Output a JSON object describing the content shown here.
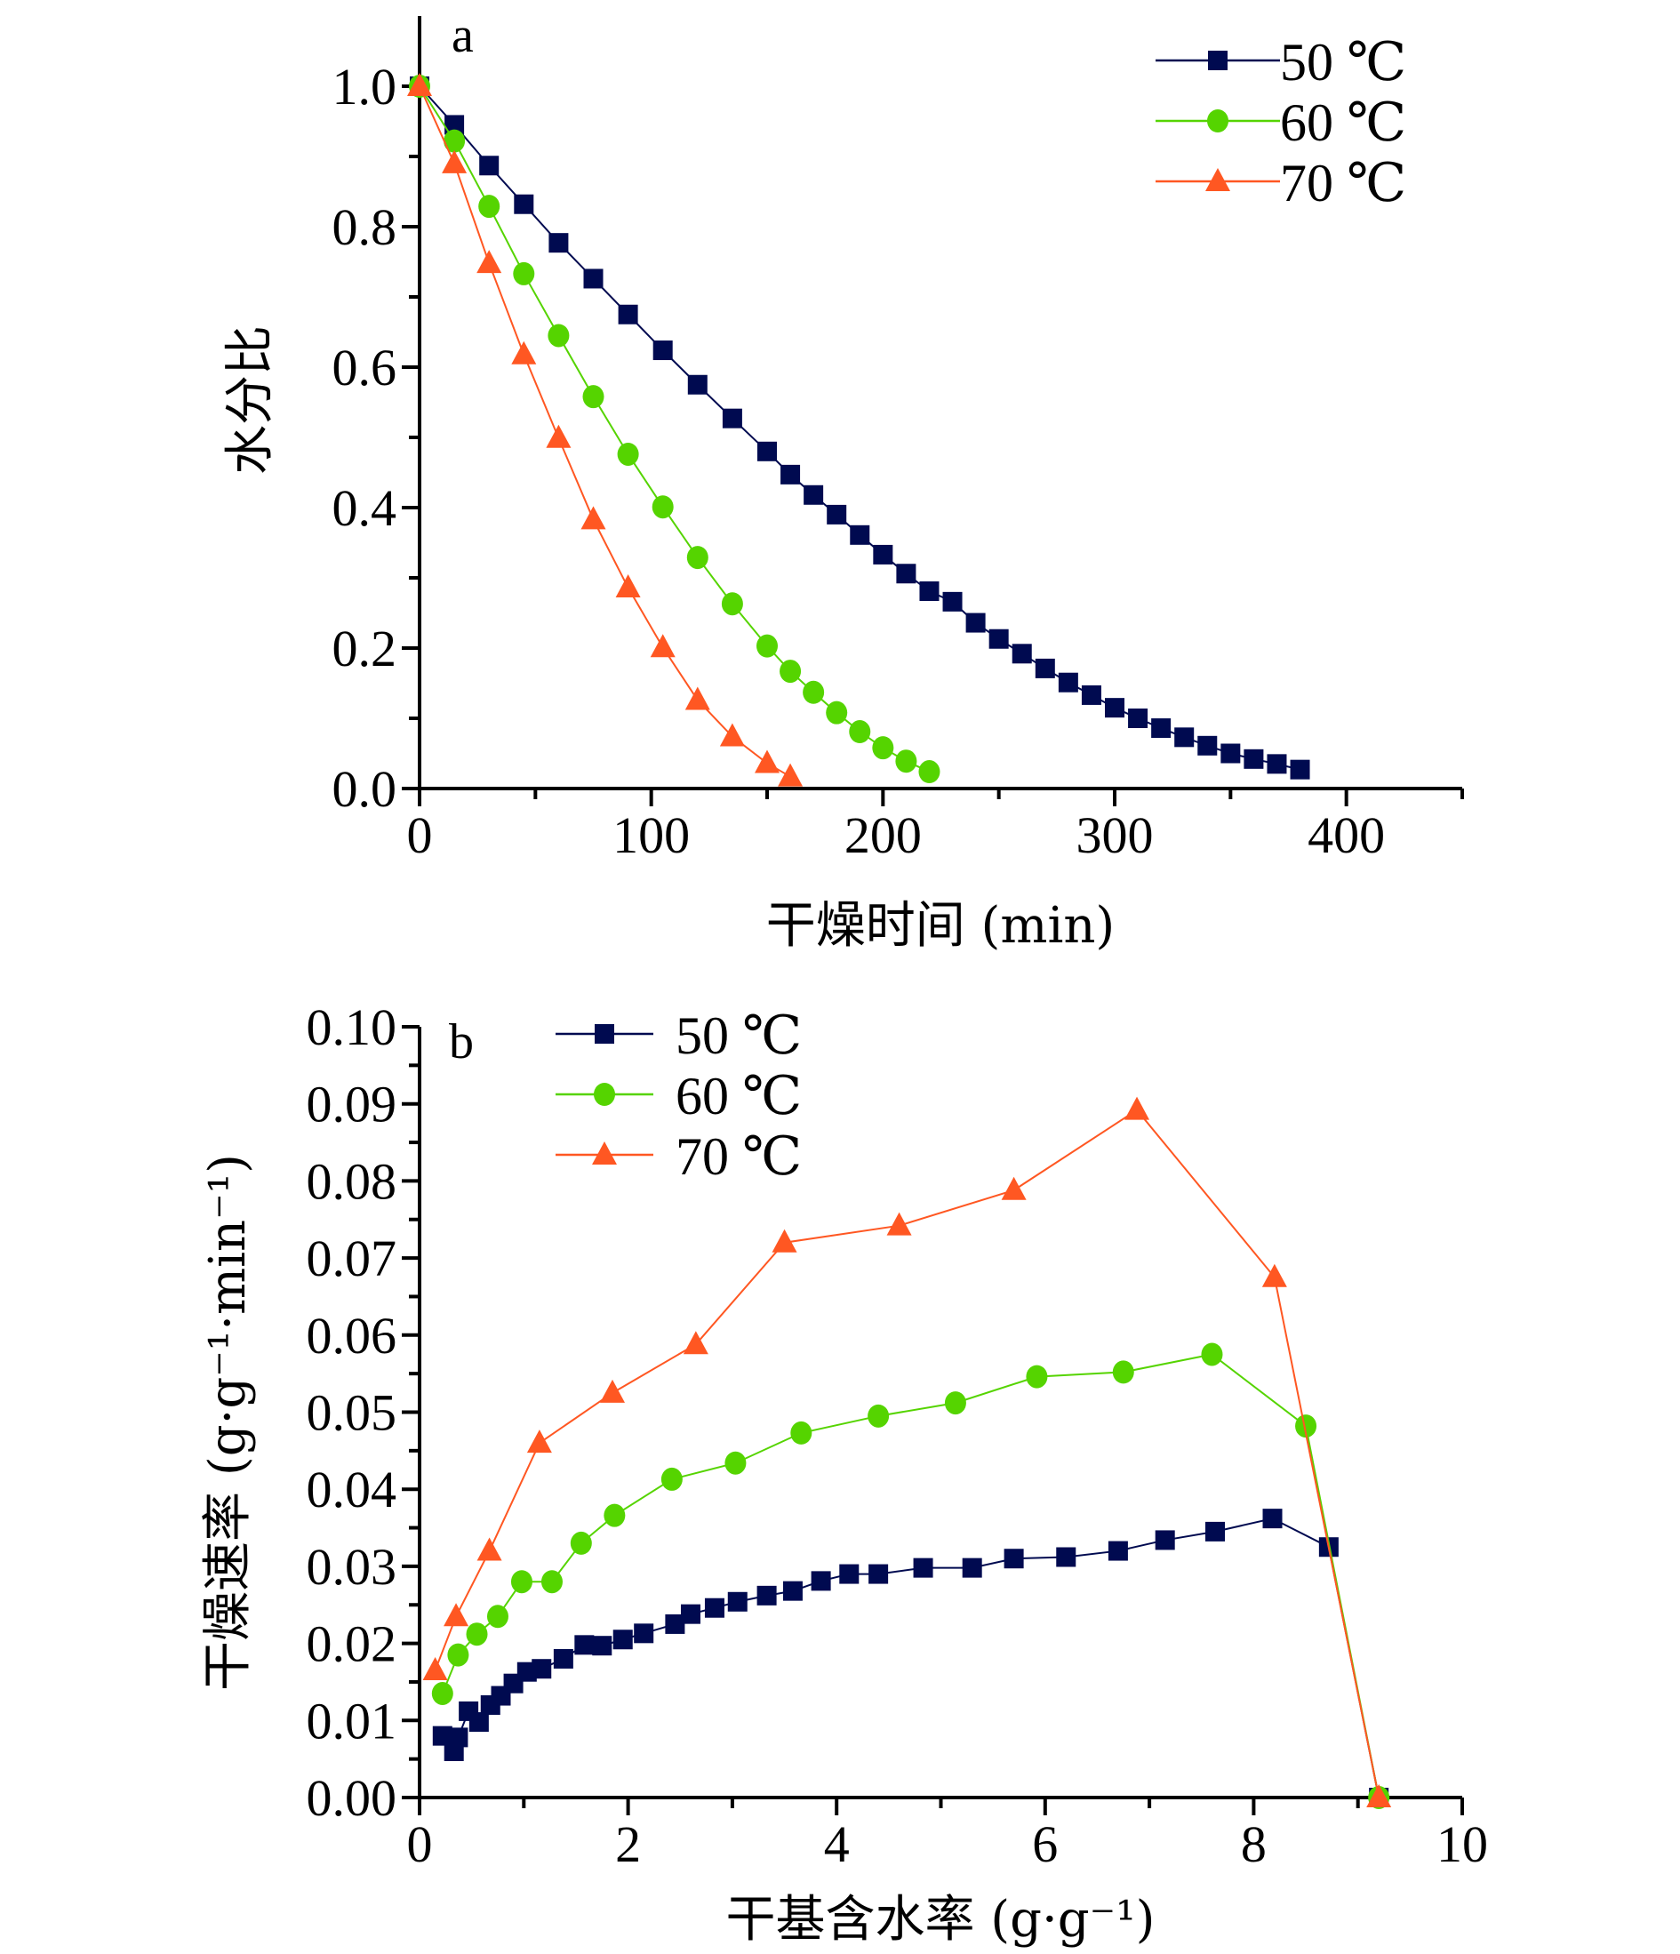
{
  "chart_data": [
    {
      "id": "a",
      "type": "line",
      "panel_label": "a",
      "title": "",
      "xlabel": "干燥时间 (min)",
      "ylabel": "水分比",
      "xlim": [
        0,
        450
      ],
      "ylim": [
        0,
        1.1
      ],
      "xticks": [
        0,
        100,
        200,
        300,
        400
      ],
      "xtick_labels": [
        "0",
        "100",
        "200",
        "300",
        "400"
      ],
      "x_minor_ticks": [
        50,
        150,
        250,
        350,
        450
      ],
      "yticks": [
        0.0,
        0.2,
        0.4,
        0.6,
        0.8,
        1.0
      ],
      "ytick_labels": [
        "0.0",
        "0.2",
        "0.4",
        "0.6",
        "0.8",
        "1.0"
      ],
      "y_minor_ticks": [
        0.1,
        0.3,
        0.5,
        0.7,
        0.9
      ],
      "grid": false,
      "legend_position": "top-right",
      "series": [
        {
          "name": "50 ℃",
          "marker": "square",
          "color": "#000A50",
          "x": [
            0,
            15,
            30,
            45,
            60,
            75,
            90,
            105,
            120,
            135,
            150,
            160,
            170,
            180,
            190,
            200,
            210,
            220,
            230,
            240,
            250,
            260,
            270,
            280,
            290,
            300,
            310,
            320,
            330,
            340,
            350,
            360,
            370,
            380
          ],
          "y": [
            1.0,
            0.945,
            0.887,
            0.832,
            0.777,
            0.726,
            0.675,
            0.624,
            0.575,
            0.527,
            0.48,
            0.447,
            0.418,
            0.39,
            0.361,
            0.333,
            0.306,
            0.281,
            0.266,
            0.236,
            0.213,
            0.192,
            0.171,
            0.151,
            0.133,
            0.115,
            0.1,
            0.086,
            0.073,
            0.061,
            0.05,
            0.042,
            0.035,
            0.027
          ]
        },
        {
          "name": "60 ℃",
          "marker": "circle",
          "color": "#55D400",
          "x": [
            0,
            15,
            30,
            45,
            60,
            75,
            90,
            105,
            120,
            135,
            150,
            160,
            170,
            180,
            190,
            200,
            210,
            220
          ],
          "y": [
            1.0,
            0.922,
            0.829,
            0.733,
            0.645,
            0.558,
            0.476,
            0.401,
            0.329,
            0.263,
            0.203,
            0.167,
            0.137,
            0.108,
            0.081,
            0.058,
            0.039,
            0.024
          ]
        },
        {
          "name": "70 ℃",
          "marker": "triangle",
          "color": "#FF5722",
          "x": [
            0,
            15,
            30,
            45,
            60,
            75,
            90,
            105,
            120,
            135,
            150,
            160
          ],
          "y": [
            1.0,
            0.89,
            0.748,
            0.618,
            0.499,
            0.383,
            0.286,
            0.201,
            0.126,
            0.074,
            0.036,
            0.017
          ]
        }
      ]
    },
    {
      "id": "b",
      "type": "line",
      "panel_label": "b",
      "title": "",
      "xlabel": "干基含水率 (g·g⁻¹)",
      "ylabel": "干燥速率 (g·g⁻¹·min⁻¹)",
      "xlim": [
        0,
        10
      ],
      "ylim": [
        0,
        0.1
      ],
      "xticks": [
        0,
        2,
        4,
        6,
        8,
        10
      ],
      "xtick_labels": [
        "0",
        "2",
        "4",
        "6",
        "8",
        "10"
      ],
      "x_minor_ticks": [
        1,
        3,
        5,
        7,
        9
      ],
      "yticks": [
        0.0,
        0.01,
        0.02,
        0.03,
        0.04,
        0.05,
        0.06,
        0.07,
        0.08,
        0.09,
        0.1
      ],
      "ytick_labels": [
        "0.00",
        "0.01",
        "0.02",
        "0.03",
        "0.04",
        "0.05",
        "0.06",
        "0.07",
        "0.08",
        "0.09",
        "0.10"
      ],
      "y_minor_ticks": [
        0.005,
        0.015,
        0.025,
        0.035,
        0.045,
        0.055,
        0.065,
        0.075,
        0.085,
        0.095
      ],
      "grid": false,
      "legend_position": "top-left",
      "series": [
        {
          "name": "50 ℃",
          "marker": "square",
          "color": "#000A50",
          "x": [
            0.22,
            0.33,
            0.37,
            0.47,
            0.57,
            0.68,
            0.78,
            0.9,
            1.03,
            1.17,
            1.38,
            1.58,
            1.75,
            1.95,
            2.15,
            2.45,
            2.6,
            2.83,
            3.05,
            3.33,
            3.58,
            3.85,
            4.12,
            4.4,
            4.83,
            5.3,
            5.7,
            6.2,
            6.7,
            7.15,
            7.63,
            8.18,
            8.72,
            9.2
          ],
          "y": [
            0.008,
            0.006,
            0.0078,
            0.0112,
            0.0098,
            0.012,
            0.0132,
            0.0148,
            0.0163,
            0.0167,
            0.018,
            0.0198,
            0.0197,
            0.0205,
            0.0213,
            0.0225,
            0.0238,
            0.0246,
            0.0254,
            0.0262,
            0.0268,
            0.0281,
            0.029,
            0.029,
            0.0298,
            0.0298,
            0.031,
            0.0312,
            0.032,
            0.0334,
            0.0345,
            0.0362,
            0.0325,
            0.0
          ]
        },
        {
          "name": "60 ℃",
          "marker": "circle",
          "color": "#55D400",
          "x": [
            0.22,
            0.37,
            0.55,
            0.75,
            0.98,
            1.27,
            1.55,
            1.87,
            2.42,
            3.03,
            3.66,
            4.4,
            5.14,
            5.92,
            6.75,
            7.6,
            8.5,
            9.2
          ],
          "y": [
            0.0135,
            0.0185,
            0.0212,
            0.0235,
            0.028,
            0.028,
            0.033,
            0.0366,
            0.0413,
            0.0434,
            0.0473,
            0.0495,
            0.0512,
            0.0546,
            0.0552,
            0.0575,
            0.0482,
            0.0
          ]
        },
        {
          "name": "70 ℃",
          "marker": "triangle",
          "color": "#FF5722",
          "x": [
            0.15,
            0.35,
            0.67,
            1.15,
            1.85,
            2.65,
            3.5,
            4.6,
            5.7,
            6.88,
            8.2,
            9.2
          ],
          "y": [
            0.0165,
            0.0235,
            0.032,
            0.046,
            0.0525,
            0.0588,
            0.072,
            0.0742,
            0.0788,
            0.0892,
            0.0675,
            0.0
          ]
        }
      ]
    }
  ]
}
